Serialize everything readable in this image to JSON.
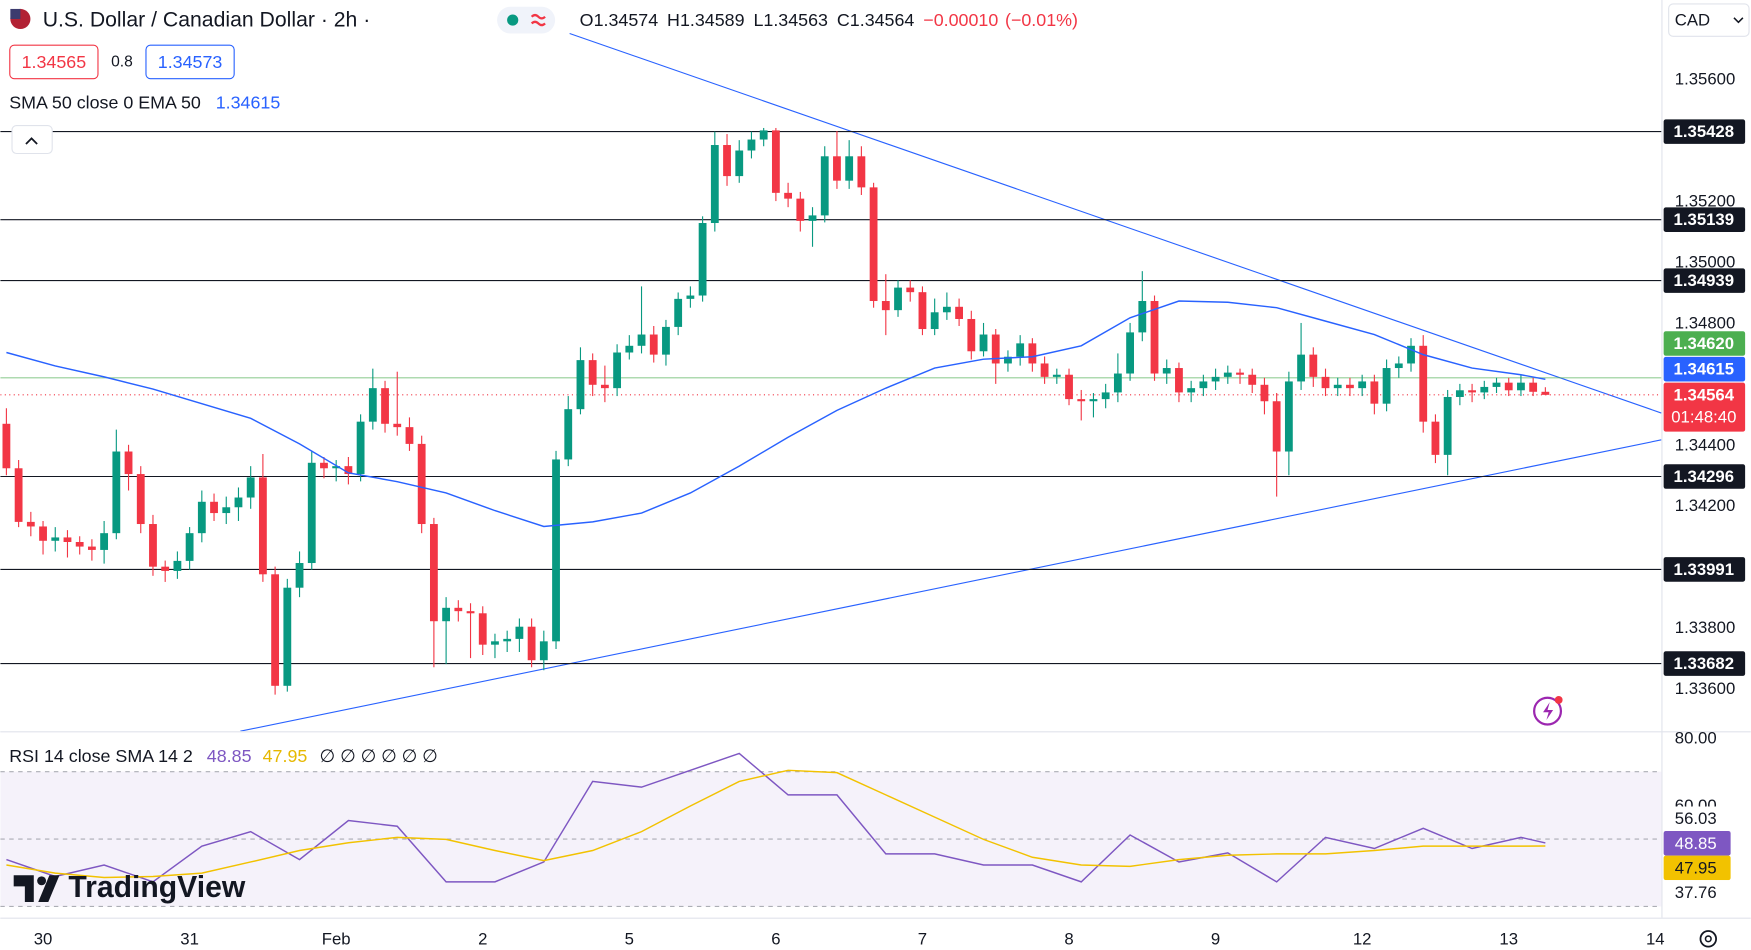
{
  "header": {
    "title": "U.S. Dollar / Canadian Dollar · 2h ·",
    "ohlc_labels": [
      "O",
      "H",
      "L",
      "C"
    ],
    "change": {
      "value": -0.0001,
      "label": "−0.00010"
    },
    "change_pct": {
      "value": -0.01,
      "label": "(−0.01%)"
    },
    "sell": 1.34565,
    "spread": 0.8,
    "buy": 1.34573,
    "currency": "CAD",
    "countdown": "01:48:40",
    "logo": "TradingView"
  },
  "chart_data": [
    {
      "type": "candlestick",
      "colors": {
        "up": "#089981",
        "down": "#f23645"
      },
      "categories": [
        null,
        null,
        null,
        "30",
        null,
        null,
        null,
        null,
        null,
        null,
        null,
        null,
        null,
        null,
        null,
        "31",
        null,
        null,
        null,
        null,
        null,
        null,
        null,
        null,
        null,
        null,
        null,
        "Feb",
        null,
        null,
        null,
        null,
        null,
        null,
        null,
        null,
        null,
        null,
        null,
        "2",
        null,
        null,
        null,
        null,
        null,
        null,
        null,
        null,
        null,
        null,
        null,
        "5",
        null,
        null,
        null,
        null,
        null,
        null,
        null,
        null,
        null,
        null,
        null,
        "6",
        null,
        null,
        null,
        null,
        null,
        null,
        null,
        null,
        null,
        null,
        null,
        "7",
        null,
        null,
        null,
        null,
        null,
        null,
        null,
        null,
        null,
        null,
        null,
        "8",
        null,
        null,
        null,
        null,
        null,
        null,
        null,
        null,
        null,
        null,
        null,
        "9",
        null,
        null,
        null,
        null,
        null,
        null,
        null,
        null,
        null,
        null,
        null,
        "12",
        null,
        null,
        null,
        null,
        null,
        null,
        null,
        null,
        null,
        null,
        null,
        "13",
        null,
        null,
        null,
        null,
        null,
        null,
        null,
        null,
        null,
        null,
        null,
        "14"
      ],
      "ohlc": [
        [
          1.34469,
          1.3452,
          1.343,
          1.34323
        ],
        [
          1.34323,
          1.3435,
          1.3413,
          1.34147
        ],
        [
          1.34147,
          1.3418,
          1.341,
          1.34132
        ],
        [
          1.34132,
          1.3415,
          1.3404,
          1.34085
        ],
        [
          1.34085,
          1.3413,
          1.3405,
          1.34096
        ],
        [
          1.34096,
          1.3412,
          1.3403,
          1.34081
        ],
        [
          1.34081,
          1.341,
          1.3404,
          1.34066
        ],
        [
          1.34066,
          1.3409,
          1.3402,
          1.34055
        ],
        [
          1.34055,
          1.3415,
          1.3401,
          1.3411
        ],
        [
          1.3411,
          1.3445,
          1.3409,
          1.34378
        ],
        [
          1.34378,
          1.344,
          1.3425,
          1.34304
        ],
        [
          1.34304,
          1.3433,
          1.3411,
          1.3414
        ],
        [
          1.3414,
          1.3417,
          1.3397,
          1.34
        ],
        [
          1.34,
          1.3402,
          1.3395,
          1.33986
        ],
        [
          1.33986,
          1.3405,
          1.3396,
          1.34019
        ],
        [
          1.34019,
          1.3413,
          1.3399,
          1.3411
        ],
        [
          1.3411,
          1.3425,
          1.3408,
          1.34213
        ],
        [
          1.34213,
          1.3424,
          1.3415,
          1.34176
        ],
        [
          1.34176,
          1.3423,
          1.3414,
          1.34195
        ],
        [
          1.34195,
          1.3426,
          1.3415,
          1.34227
        ],
        [
          1.34227,
          1.3433,
          1.3419,
          1.34293
        ],
        [
          1.34293,
          1.3437,
          1.3395,
          1.33975
        ],
        [
          1.33975,
          1.34,
          1.3358,
          1.33609
        ],
        [
          1.33609,
          1.3396,
          1.3359,
          1.33931
        ],
        [
          1.33931,
          1.3405,
          1.339,
          1.34012
        ],
        [
          1.34012,
          1.3438,
          1.3399,
          1.34341
        ],
        [
          1.34341,
          1.3436,
          1.3429,
          1.34323
        ],
        [
          1.34323,
          1.3435,
          1.3428,
          1.3433
        ],
        [
          1.3433,
          1.3436,
          1.3427,
          1.34304
        ],
        [
          1.34304,
          1.345,
          1.3428,
          1.34476
        ],
        [
          1.34476,
          1.3465,
          1.3445,
          1.34586
        ],
        [
          1.34586,
          1.3461,
          1.3444,
          1.34469
        ],
        [
          1.34469,
          1.3464,
          1.3443,
          1.34458
        ],
        [
          1.34458,
          1.3449,
          1.3438,
          1.34403
        ],
        [
          1.34403,
          1.3443,
          1.3411,
          1.3414
        ],
        [
          1.3414,
          1.3416,
          1.3367,
          1.33821
        ],
        [
          1.33821,
          1.339,
          1.3368,
          1.33865
        ],
        [
          1.33865,
          1.3389,
          1.3382,
          1.33854
        ],
        [
          1.33854,
          1.3388,
          1.337,
          1.33847
        ],
        [
          1.33847,
          1.3387,
          1.3371,
          1.33744
        ],
        [
          1.33744,
          1.3378,
          1.337,
          1.33755
        ],
        [
          1.33755,
          1.3379,
          1.3372,
          1.33763
        ],
        [
          1.33763,
          1.3383,
          1.3372,
          1.33803
        ],
        [
          1.33803,
          1.3383,
          1.3367,
          1.33693
        ],
        [
          1.33693,
          1.3379,
          1.3366,
          1.33755
        ],
        [
          1.33755,
          1.3438,
          1.3373,
          1.34352
        ],
        [
          1.34352,
          1.3456,
          1.3433,
          1.34517
        ],
        [
          1.34517,
          1.3472,
          1.345,
          1.34678
        ],
        [
          1.34678,
          1.347,
          1.3456,
          1.34597
        ],
        [
          1.34597,
          1.3466,
          1.3454,
          1.34586
        ],
        [
          1.34586,
          1.3473,
          1.3456,
          1.34703
        ],
        [
          1.34703,
          1.3476,
          1.3468,
          1.34725
        ],
        [
          1.34725,
          1.3492,
          1.347,
          1.34762
        ],
        [
          1.34762,
          1.3479,
          1.3467,
          1.34696
        ],
        [
          1.34696,
          1.3481,
          1.3466,
          1.34787
        ],
        [
          1.34787,
          1.349,
          1.3476,
          1.34879
        ],
        [
          1.34879,
          1.3492,
          1.3485,
          1.3489
        ],
        [
          1.3489,
          1.3515,
          1.3487,
          1.35128
        ],
        [
          1.35128,
          1.35428,
          1.351,
          1.35384
        ],
        [
          1.35384,
          1.3542,
          1.3525,
          1.35282
        ],
        [
          1.35282,
          1.354,
          1.3526,
          1.35366
        ],
        [
          1.35366,
          1.35428,
          1.3534,
          1.35402
        ],
        [
          1.35402,
          1.3544,
          1.3538,
          1.35432
        ],
        [
          1.35432,
          1.3544,
          1.352,
          1.35227
        ],
        [
          1.35227,
          1.3526,
          1.3518,
          1.35208
        ],
        [
          1.35208,
          1.3523,
          1.351,
          1.35135
        ],
        [
          1.35135,
          1.3518,
          1.3505,
          1.35153
        ],
        [
          1.35153,
          1.3538,
          1.3513,
          1.35347
        ],
        [
          1.35347,
          1.3543,
          1.3524,
          1.35267
        ],
        [
          1.35267,
          1.354,
          1.3524,
          1.35347
        ],
        [
          1.35347,
          1.3538,
          1.3522,
          1.35245
        ],
        [
          1.35245,
          1.3526,
          1.3485,
          1.34872
        ],
        [
          1.34872,
          1.3496,
          1.3476,
          1.34842
        ],
        [
          1.34842,
          1.3494,
          1.3482,
          1.34916
        ],
        [
          1.34916,
          1.3494,
          1.3487,
          1.34901
        ],
        [
          1.34901,
          1.3492,
          1.3476,
          1.3478
        ],
        [
          1.3478,
          1.3488,
          1.3476,
          1.34835
        ],
        [
          1.34835,
          1.349,
          1.3481,
          1.34853
        ],
        [
          1.34853,
          1.3488,
          1.3479,
          1.34813
        ],
        [
          1.34813,
          1.3484,
          1.3468,
          1.34707
        ],
        [
          1.34707,
          1.348,
          1.3469,
          1.34762
        ],
        [
          1.34762,
          1.3478,
          1.346,
          1.34667
        ],
        [
          1.34667,
          1.3471,
          1.3464,
          1.34689
        ],
        [
          1.34689,
          1.3476,
          1.3466,
          1.34733
        ],
        [
          1.34733,
          1.3475,
          1.3464,
          1.34667
        ],
        [
          1.34667,
          1.3469,
          1.346,
          1.34623
        ],
        [
          1.34623,
          1.3465,
          1.346,
          1.3463
        ],
        [
          1.3463,
          1.3465,
          1.3453,
          1.3455
        ],
        [
          1.3455,
          1.3458,
          1.3448,
          1.34543
        ],
        [
          1.34543,
          1.3457,
          1.3449,
          1.3455
        ],
        [
          1.3455,
          1.346,
          1.3452,
          1.34572
        ],
        [
          1.34572,
          1.347,
          1.3454,
          1.34634
        ],
        [
          1.34634,
          1.348,
          1.3461,
          1.34769
        ],
        [
          1.34769,
          1.3497,
          1.3474,
          1.34872
        ],
        [
          1.34872,
          1.3489,
          1.3461,
          1.34634
        ],
        [
          1.34634,
          1.3468,
          1.346,
          1.34652
        ],
        [
          1.34652,
          1.3467,
          1.3454,
          1.34572
        ],
        [
          1.34572,
          1.3461,
          1.3454,
          1.34586
        ],
        [
          1.34586,
          1.3463,
          1.3456,
          1.34608
        ],
        [
          1.34608,
          1.3465,
          1.3458,
          1.34623
        ],
        [
          1.34623,
          1.3466,
          1.346,
          1.34637
        ],
        [
          1.34637,
          1.3465,
          1.346,
          1.3463
        ],
        [
          1.3463,
          1.3465,
          1.3457,
          1.34597
        ],
        [
          1.34597,
          1.3462,
          1.345,
          1.34543
        ],
        [
          1.34543,
          1.3457,
          1.3423,
          1.34378
        ],
        [
          1.34378,
          1.3464,
          1.343,
          1.34608
        ],
        [
          1.34608,
          1.348,
          1.3458,
          1.34696
        ],
        [
          1.34696,
          1.3472,
          1.3459,
          1.34623
        ],
        [
          1.34623,
          1.3465,
          1.3456,
          1.34586
        ],
        [
          1.34586,
          1.3462,
          1.3456,
          1.34597
        ],
        [
          1.34597,
          1.3462,
          1.3456,
          1.34586
        ],
        [
          1.34586,
          1.3463,
          1.3456,
          1.34608
        ],
        [
          1.34608,
          1.3463,
          1.345,
          1.34535
        ],
        [
          1.34535,
          1.3468,
          1.3451,
          1.34652
        ],
        [
          1.34652,
          1.3469,
          1.3462,
          1.34667
        ],
        [
          1.34667,
          1.3475,
          1.3464,
          1.34725
        ],
        [
          1.34725,
          1.3476,
          1.3444,
          1.34476
        ],
        [
          1.34476,
          1.345,
          1.3434,
          1.34367
        ],
        [
          1.34367,
          1.3458,
          1.343,
          1.34557
        ],
        [
          1.34557,
          1.346,
          1.3453,
          1.34579
        ],
        [
          1.34579,
          1.346,
          1.3454,
          1.34572
        ],
        [
          1.34572,
          1.3461,
          1.3455,
          1.3459
        ],
        [
          1.3459,
          1.3462,
          1.3457,
          1.34604
        ],
        [
          1.34604,
          1.3462,
          1.3456,
          1.34579
        ],
        [
          1.34579,
          1.3463,
          1.3456,
          1.34604
        ],
        [
          1.34604,
          1.3462,
          1.3456,
          1.34574
        ],
        [
          1.34574,
          1.34589,
          1.34563,
          1.34564
        ],
        null,
        null,
        null,
        null,
        null,
        null,
        null,
        null,
        null
      ],
      "ylim": [
        1.3346,
        1.3586
      ],
      "yticks": [
        {
          "value": 1.356,
          "label": "1.35600"
        },
        {
          "value": 1.352,
          "label": "1.35200"
        },
        {
          "value": 1.35,
          "label": "1.35000"
        },
        {
          "value": 1.348,
          "label": "1.34800"
        },
        {
          "value": 1.344,
          "label": "1.34400"
        },
        {
          "value": 1.342,
          "label": "1.34200"
        },
        {
          "value": 1.338,
          "label": "1.33800"
        },
        {
          "value": 1.336,
          "label": "1.33600"
        }
      ],
      "grid": false,
      "levels": [
        1.35428,
        1.35139,
        1.34939,
        1.34296,
        1.33991,
        1.33682
      ],
      "bid_line": {
        "value": 1.3462,
        "label": "1.34620",
        "color": "#4caf50"
      },
      "ema": {
        "name": "SMA 50 close 0 EMA 50",
        "color": "#2962ff",
        "x": [
          0,
          4,
          8,
          12,
          16,
          20,
          24,
          28,
          32,
          36,
          40,
          44,
          48,
          52,
          56,
          60,
          64,
          68,
          72,
          76,
          80,
          84,
          88,
          92,
          96,
          100,
          104,
          108,
          112,
          116,
          120,
          124,
          126
        ],
        "values": [
          1.34703,
          1.34659,
          1.34623,
          1.34583,
          1.34535,
          1.34487,
          1.34403,
          1.34308,
          1.34279,
          1.34242,
          1.34184,
          1.34132,
          1.34147,
          1.34176,
          1.34242,
          1.3433,
          1.34425,
          1.34513,
          1.34586,
          1.34652,
          1.34681,
          1.34689,
          1.34725,
          1.34817,
          1.34872,
          1.34868,
          1.3485,
          1.34806,
          1.34762,
          1.34696,
          1.34652,
          1.3463,
          1.34615
        ]
      }
    },
    {
      "type": "line",
      "title": "RSI 14 close SMA 14 2",
      "extra": "∅ ∅ ∅ ∅ ∅ ∅",
      "x": [
        0,
        4,
        8,
        12,
        16,
        20,
        24,
        28,
        32,
        36,
        40,
        44,
        48,
        52,
        56,
        60,
        64,
        68,
        72,
        76,
        80,
        84,
        88,
        92,
        96,
        100,
        104,
        108,
        112,
        116,
        120,
        124,
        126
      ],
      "series": [
        {
          "color": "#7e57c2",
          "values": [
            43.9,
            38.9,
            42.3,
            37.3,
            47.9,
            52.2,
            43.9,
            55.5,
            53.8,
            37.3,
            37.3,
            43.2,
            67.1,
            65.4,
            70.4,
            75.4,
            63.1,
            63.1,
            45.6,
            45.6,
            42.3,
            42.3,
            37.3,
            51.2,
            43.2,
            45.9,
            37.3,
            50.5,
            47.2,
            53.2,
            47.2,
            50.5,
            48.85
          ]
        },
        {
          "color": "#f2c200",
          "values": [
            42.3,
            39.9,
            38.6,
            38.9,
            39.9,
            43.2,
            46.6,
            48.9,
            50.5,
            49.9,
            46.6,
            43.6,
            46.6,
            52.2,
            59.8,
            67.1,
            70.4,
            69.7,
            63.1,
            56.5,
            49.9,
            44.6,
            42.3,
            41.9,
            43.9,
            45.2,
            45.6,
            45.6,
            46.6,
            47.9,
            47.9,
            47.9,
            47.95
          ]
        }
      ],
      "ylim": [
        27.35,
        82
      ],
      "yticks": [
        {
          "value": 80,
          "label": "80.00"
        },
        {
          "value": 60,
          "label": "60.00"
        }
      ],
      "bands": [
        70,
        50,
        30
      ],
      "axis_labels": [
        56.03,
        37.76
      ]
    }
  ]
}
